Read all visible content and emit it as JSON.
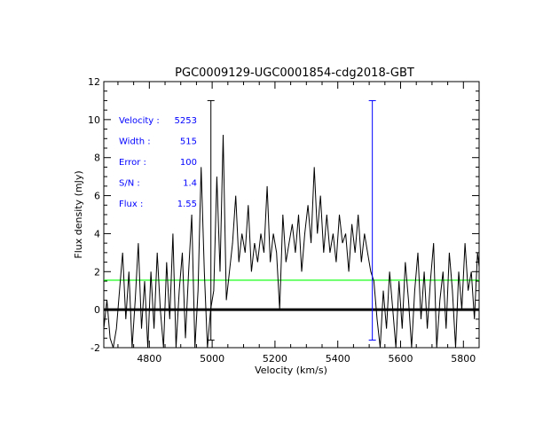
{
  "chart_data": {
    "type": "line",
    "title": "PGC0009129-UGC0001854-cdg2018-GBT",
    "xlabel": "Velocity (km/s)",
    "ylabel": "Flux density (mJy)",
    "xlim": [
      4655,
      5850
    ],
    "ylim": [
      -2,
      12
    ],
    "xticks": [
      4800,
      5000,
      5200,
      5400,
      5600,
      5800
    ],
    "yticks": [
      -2,
      0,
      2,
      4,
      6,
      8,
      10,
      12
    ],
    "x_start": 4655,
    "x_step": 10,
    "values": [
      -1,
      0.5,
      -1.5,
      -2,
      -1,
      1,
      3,
      -0.5,
      2,
      -2,
      0.5,
      3.5,
      -1,
      1.5,
      -2,
      2,
      -1,
      3,
      0,
      -2,
      2.5,
      -0.5,
      4,
      -2,
      1,
      3,
      -1.5,
      2,
      5,
      -2,
      1,
      7.5,
      2,
      -2,
      0,
      1,
      7,
      2,
      9.2,
      0.5,
      2,
      3.5,
      6,
      2.5,
      4,
      3,
      5.5,
      2,
      3.5,
      2.5,
      4,
      3,
      6.5,
      2.5,
      4,
      3,
      0,
      5,
      2.5,
      3.5,
      4.5,
      3,
      5,
      2,
      4,
      5.5,
      3.5,
      7.5,
      4,
      6,
      3,
      5,
      3,
      4,
      2.5,
      5,
      3.5,
      4,
      2,
      4.5,
      3,
      5,
      2.5,
      4,
      3,
      2,
      1.5,
      -0.5,
      -2,
      1,
      -1,
      2,
      0,
      -2,
      1.5,
      -1,
      2.5,
      0.5,
      -2,
      1,
      3,
      -0.5,
      2,
      -1,
      1.5,
      3.5,
      -2,
      0.5,
      2,
      -1,
      3,
      1,
      -2,
      2,
      0,
      3.5,
      1,
      2,
      -0.5,
      3,
      1.5
    ],
    "zero_line": 0,
    "flux_level_line": 1.55,
    "velocity_markers": [
      4996,
      5510
    ],
    "marker_range": [
      -1.6,
      11
    ],
    "colors": {
      "spectrum": "#000000",
      "zero": "#000000",
      "level": "#00ff00",
      "markers": "#0000ff",
      "annotations": "#0000ff"
    },
    "annotations": [
      {
        "label": "Velocity :",
        "value": "5253"
      },
      {
        "label": "Width :",
        "value": "515"
      },
      {
        "label": "Error :",
        "value": "100"
      },
      {
        "label": "S/N :",
        "value": "1.4"
      },
      {
        "label": "Flux :",
        "value": "1.55"
      }
    ]
  }
}
